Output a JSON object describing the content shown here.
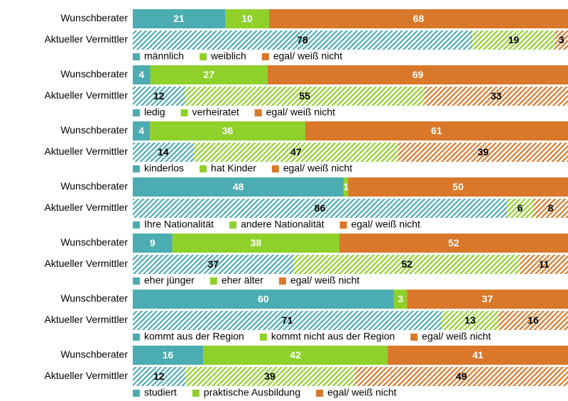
{
  "chart_data": [
    {
      "type": "bar",
      "orientation": "horizontal",
      "stacked": true,
      "categories": [
        "Wunschberater",
        "Aktueller Vermittler"
      ],
      "hatched": [
        false,
        true
      ],
      "series": [
        {
          "name": "männlich",
          "color": "#4bacb2",
          "values": [
            21,
            78
          ]
        },
        {
          "name": "weiblich",
          "color": "#8fd12a",
          "values": [
            10,
            19
          ]
        },
        {
          "name": "egal/ weiß nicht",
          "color": "#d9782a",
          "values": [
            68,
            3
          ]
        }
      ]
    },
    {
      "type": "bar",
      "orientation": "horizontal",
      "stacked": true,
      "categories": [
        "Wunschberater",
        "Aktueller Vermittler"
      ],
      "hatched": [
        false,
        true
      ],
      "series": [
        {
          "name": "ledig",
          "color": "#4bacb2",
          "values": [
            4,
            12
          ]
        },
        {
          "name": "verheiratet",
          "color": "#8fd12a",
          "values": [
            27,
            55
          ]
        },
        {
          "name": "egal/ weiß nicht",
          "color": "#d9782a",
          "values": [
            69,
            33
          ]
        }
      ]
    },
    {
      "type": "bar",
      "orientation": "horizontal",
      "stacked": true,
      "categories": [
        "Wunschberater",
        "Aktueller Vermittler"
      ],
      "hatched": [
        false,
        true
      ],
      "series": [
        {
          "name": "kinderlos",
          "color": "#4bacb2",
          "values": [
            4,
            14
          ]
        },
        {
          "name": "hat Kinder",
          "color": "#8fd12a",
          "values": [
            36,
            47
          ]
        },
        {
          "name": "egal/ weiß nicht",
          "color": "#d9782a",
          "values": [
            61,
            39
          ]
        }
      ]
    },
    {
      "type": "bar",
      "orientation": "horizontal",
      "stacked": true,
      "categories": [
        "Wunschberater",
        "Aktueller Vermittler"
      ],
      "hatched": [
        false,
        true
      ],
      "series": [
        {
          "name": "Ihre Nationalität",
          "color": "#4bacb2",
          "values": [
            48,
            86
          ]
        },
        {
          "name": "andere Nationalität",
          "color": "#8fd12a",
          "values": [
            1,
            6
          ]
        },
        {
          "name": "egal/ weiß nicht",
          "color": "#d9782a",
          "values": [
            50,
            8
          ]
        }
      ]
    },
    {
      "type": "bar",
      "orientation": "horizontal",
      "stacked": true,
      "categories": [
        "Wunschberater",
        "Aktueller Vermittler"
      ],
      "hatched": [
        false,
        true
      ],
      "series": [
        {
          "name": "eher jünger",
          "color": "#4bacb2",
          "values": [
            9,
            37
          ]
        },
        {
          "name": "eher älter",
          "color": "#8fd12a",
          "values": [
            38,
            52
          ]
        },
        {
          "name": "egal/ weiß nicht",
          "color": "#d9782a",
          "values": [
            52,
            11
          ]
        }
      ]
    },
    {
      "type": "bar",
      "orientation": "horizontal",
      "stacked": true,
      "categories": [
        "Wunschberater",
        "Aktueller Vermittler"
      ],
      "hatched": [
        false,
        true
      ],
      "series": [
        {
          "name": "kommt aus der Region",
          "color": "#4bacb2",
          "values": [
            60,
            71
          ]
        },
        {
          "name": "kommt nicht aus der Region",
          "color": "#8fd12a",
          "values": [
            3,
            13
          ]
        },
        {
          "name": "egal/ weiß nicht",
          "color": "#d9782a",
          "values": [
            37,
            16
          ]
        }
      ]
    },
    {
      "type": "bar",
      "orientation": "horizontal",
      "stacked": true,
      "categories": [
        "Wunschberater",
        "Aktueller Vermittler"
      ],
      "hatched": [
        false,
        true
      ],
      "series": [
        {
          "name": "studiert",
          "color": "#4bacb2",
          "values": [
            16,
            12
          ]
        },
        {
          "name": "praktische Ausbildung",
          "color": "#8fd12a",
          "values": [
            42,
            39
          ]
        },
        {
          "name": "egal/ weiß nicht",
          "color": "#d9782a",
          "values": [
            41,
            49
          ]
        }
      ]
    }
  ]
}
